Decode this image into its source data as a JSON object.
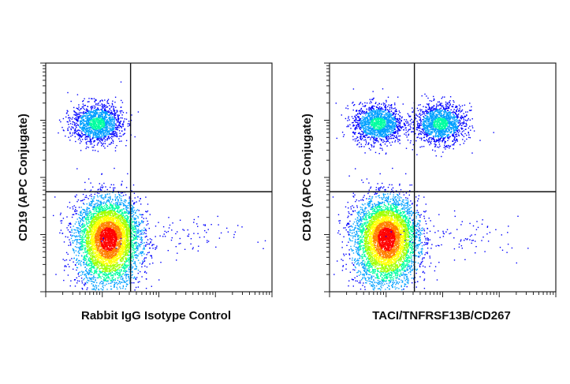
{
  "chart_data": [
    {
      "type": "scatter",
      "subtype": "flow-cytometry-density-plot",
      "xlabel": "Rabbit IgG Isotype Control",
      "ylabel": "CD19 (APC Conjugate)",
      "x_scale": "log",
      "y_scale": "log",
      "x_decades": 4,
      "y_decades": 4,
      "gate": {
        "x_decade": 1.5,
        "y_decade": 1.75
      },
      "populations": [
        {
          "name": "",
          "x_decade": 1.1,
          "y_decade": 0.95,
          "density": "high"
        },
        {
          "name": "",
          "x_decade": 0.9,
          "y_decade": 2.95,
          "density": "medium"
        },
        {
          "name": "",
          "x_decade": 2.3,
          "y_decade": 0.95,
          "density": "sparse"
        }
      ],
      "color_scale": [
        "#0000ff",
        "#00a0ff",
        "#00ffa0",
        "#a0ff00",
        "#ffff00",
        "#ff8000",
        "#ff0000"
      ]
    },
    {
      "type": "scatter",
      "subtype": "flow-cytometry-density-plot",
      "xlabel": "TACI/TNFRSF13B/CD267",
      "ylabel": "CD19 (APC Conjugate)",
      "x_scale": "log",
      "y_scale": "log",
      "x_decades": 4,
      "y_decades": 4,
      "gate": {
        "x_decade": 1.5,
        "y_decade": 1.75
      },
      "populations": [
        {
          "name": "",
          "x_decade": 1.0,
          "y_decade": 0.95,
          "density": "high"
        },
        {
          "name": "",
          "x_decade": 0.85,
          "y_decade": 2.95,
          "density": "medium"
        },
        {
          "name": "",
          "x_decade": 1.95,
          "y_decade": 2.95,
          "density": "medium"
        },
        {
          "name": "",
          "x_decade": 2.3,
          "y_decade": 0.95,
          "density": "sparse"
        }
      ],
      "color_scale": [
        "#0000ff",
        "#00a0ff",
        "#00ffa0",
        "#a0ff00",
        "#ffff00",
        "#ff8000",
        "#ff0000"
      ]
    }
  ]
}
